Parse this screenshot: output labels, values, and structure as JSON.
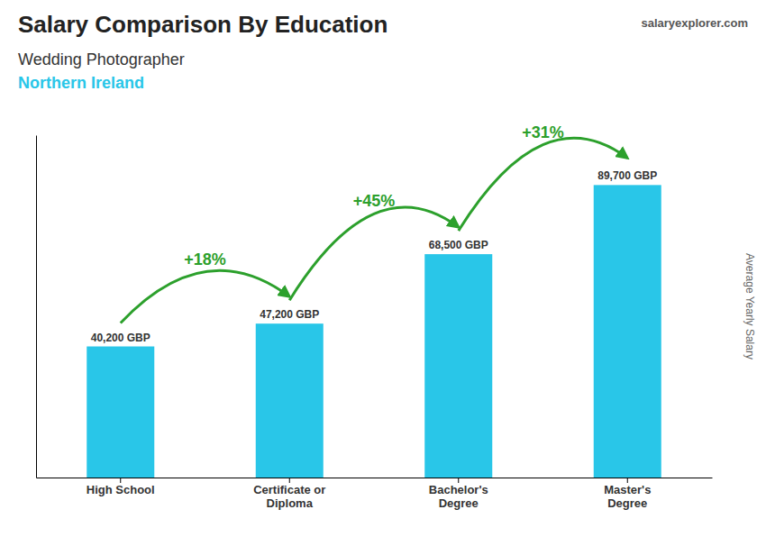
{
  "chart_data": {
    "type": "bar",
    "title": "Salary Comparison By Education",
    "subtitle": "Wedding Photographer",
    "annotations": [
      "Northern Ireland",
      "salaryexplorer.com"
    ],
    "y_label": "Average Yearly Salary",
    "categories": [
      "High School",
      "Certificate or\nDiploma",
      "Bachelor's\nDegree",
      "Master's\nDegree"
    ],
    "values": [
      40200,
      47200,
      68500,
      89700
    ],
    "value_labels": [
      "40,200 GBP",
      "47,200 GBP",
      "68,500 GBP",
      "89,700 GBP"
    ],
    "data_labels": true,
    "changes": [
      "+18%",
      "+45%",
      "+31%"
    ],
    "color": "#29c6e8",
    "ylim": [
      0,
      105000
    ],
    "tick_labels": "x",
    "grid": false
  }
}
